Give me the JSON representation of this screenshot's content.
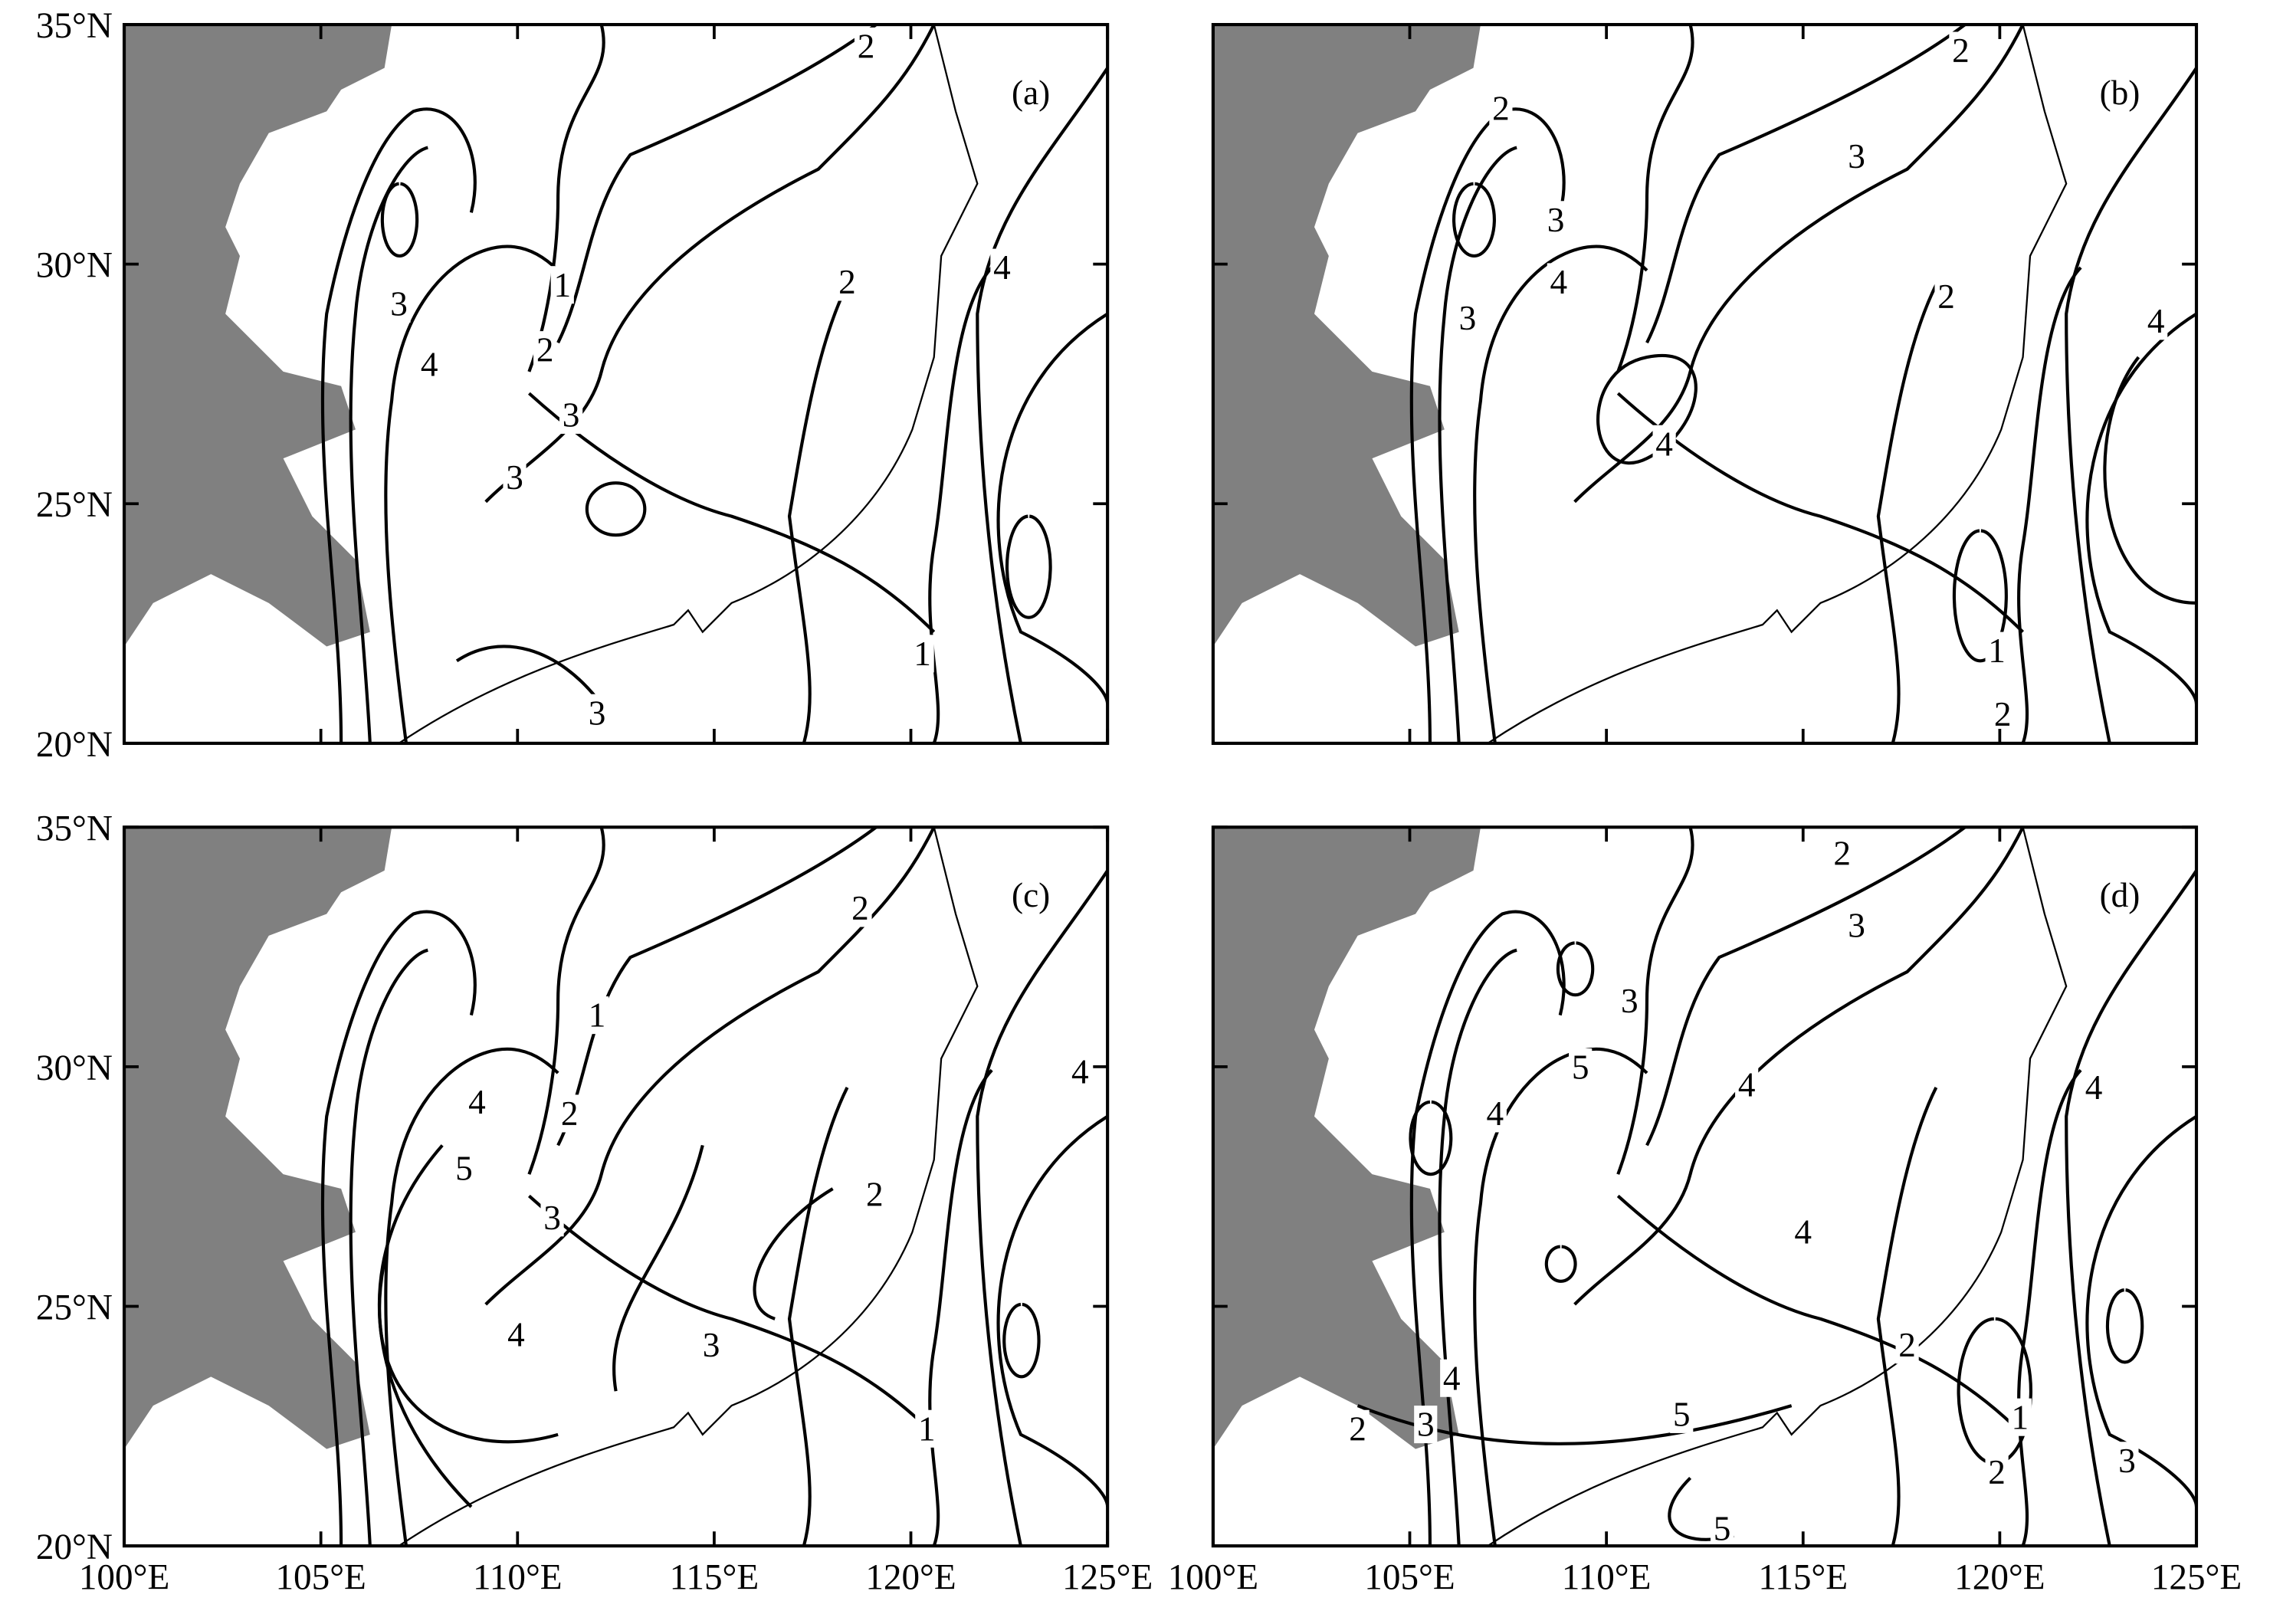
{
  "map": {
    "xlim": [
      100,
      125
    ],
    "ylim": [
      20,
      35
    ],
    "xticks": [
      {
        "value": 100,
        "label": "100°E"
      },
      {
        "value": 105,
        "label": "105°E"
      },
      {
        "value": 110,
        "label": "110°E"
      },
      {
        "value": 115,
        "label": "115°E"
      },
      {
        "value": 120,
        "label": "120°E"
      },
      {
        "value": 125,
        "label": "125°E"
      }
    ],
    "yticks": [
      {
        "value": 20,
        "label": "20°N"
      },
      {
        "value": 25,
        "label": "25°N"
      },
      {
        "value": 30,
        "label": "30°N"
      },
      {
        "value": 35,
        "label": "35°N"
      }
    ],
    "panels": [
      {
        "label": "(a)",
        "contour_labels": [
          2,
          3,
          4,
          1,
          2,
          3,
          3,
          3,
          2,
          4,
          1
        ]
      },
      {
        "label": "(b)",
        "contour_labels": [
          2,
          2,
          3,
          3,
          4,
          3,
          2,
          4,
          4,
          1,
          2
        ]
      },
      {
        "label": "(c)",
        "contour_labels": [
          2,
          1,
          2,
          4,
          5,
          3,
          4,
          3,
          2,
          4,
          1
        ]
      },
      {
        "label": "(d)",
        "contour_labels": [
          2,
          3,
          3,
          5,
          4,
          4,
          4,
          4,
          2,
          5,
          4,
          3,
          2,
          5,
          1,
          2,
          3
        ]
      }
    ]
  }
}
